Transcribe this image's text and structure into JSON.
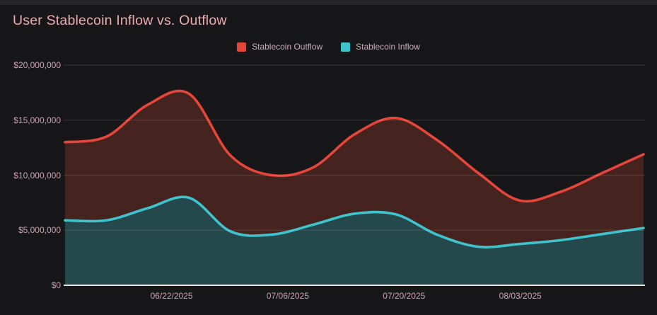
{
  "header": {
    "title": "User Stablecoin Inflow vs. Outflow"
  },
  "legend": {
    "items": [
      {
        "label": "Stablecoin Outflow",
        "color": "#e6463a"
      },
      {
        "label": "Stablecoin Inflow",
        "color": "#3fc3cd"
      }
    ]
  },
  "chart_data": {
    "type": "area",
    "title": "User Stablecoin Inflow vs. Outflow",
    "x": [
      "06/09/2025",
      "06/14/2025",
      "06/19/2025",
      "06/24/2025",
      "06/29/2025",
      "07/04/2025",
      "07/09/2025",
      "07/14/2025",
      "07/19/2025",
      "07/24/2025",
      "07/29/2025",
      "08/03/2025",
      "08/08/2025",
      "08/13/2025",
      "08/18/2025"
    ],
    "series": [
      {
        "name": "Stablecoin Outflow",
        "color": "#e6463a",
        "fill": "#45231f",
        "values": [
          13000000,
          13500000,
          16400000,
          17400000,
          11800000,
          10000000,
          10700000,
          13700000,
          15200000,
          13200000,
          10200000,
          7700000,
          8500000,
          10200000,
          11900000
        ]
      },
      {
        "name": "Stablecoin Inflow",
        "color": "#3fc3cd",
        "fill": "#25484c",
        "values": [
          5900000,
          5900000,
          7000000,
          7950000,
          4900000,
          4600000,
          5500000,
          6500000,
          6450000,
          4600000,
          3500000,
          3750000,
          4100000,
          4650000,
          5200000
        ]
      }
    ],
    "x_tick_labels": [
      "06/22/2025",
      "07/06/2025",
      "07/20/2025",
      "08/03/2025"
    ],
    "y_ticks": [
      20000000,
      15000000,
      10000000,
      5000000,
      0
    ],
    "y_tick_labels": [
      "$20,000,000",
      "$15,000,000",
      "$10,000,000",
      "$5,000,000",
      "$0"
    ],
    "ylim": [
      0,
      20000000
    ],
    "grid": "horizontal",
    "legend_position": "top-center"
  },
  "colors": {
    "background": "#17171a",
    "top_strip": "#242429",
    "title": "#ecaab1",
    "axis_label": "#cba4ac",
    "legend_label": "#c7aeb4",
    "gridline": "rgba(255,255,255,0.13)",
    "axis_line": "#e9e6e2"
  }
}
